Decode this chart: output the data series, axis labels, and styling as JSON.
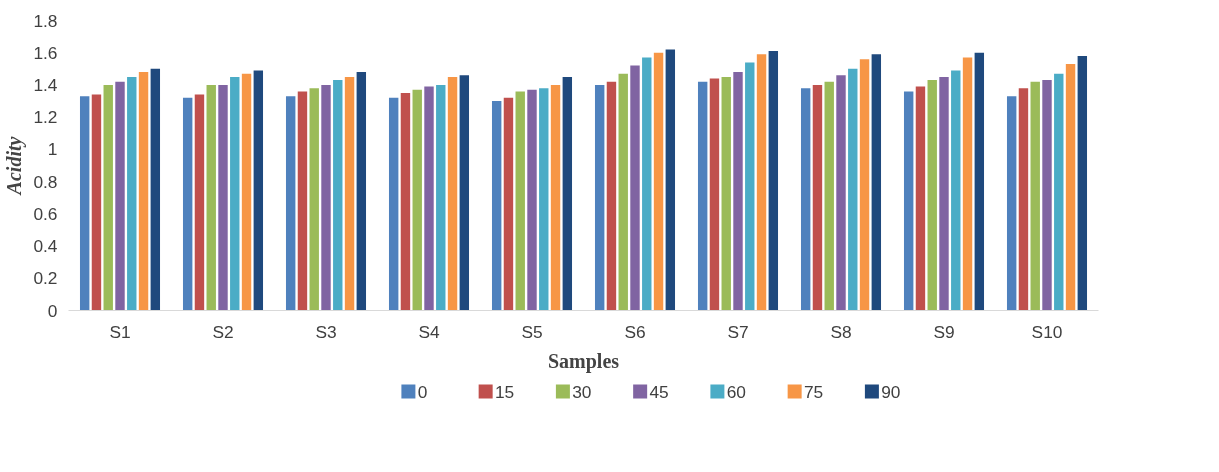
{
  "chart_data": {
    "type": "bar",
    "xlabel": "Samples",
    "ylabel": "Acidity",
    "categories": [
      "S1",
      "S2",
      "S3",
      "S4",
      "S5",
      "S6",
      "S7",
      "S8",
      "S9",
      "S10"
    ],
    "series": [
      {
        "name": "0",
        "color": "#4f81bd",
        "values": [
          1.33,
          1.32,
          1.33,
          1.32,
          1.3,
          1.4,
          1.42,
          1.38,
          1.36,
          1.33
        ]
      },
      {
        "name": "15",
        "color": "#c0504d",
        "values": [
          1.34,
          1.34,
          1.36,
          1.35,
          1.32,
          1.42,
          1.44,
          1.4,
          1.39,
          1.38
        ]
      },
      {
        "name": "30",
        "color": "#9bbb59",
        "values": [
          1.4,
          1.4,
          1.38,
          1.37,
          1.36,
          1.47,
          1.45,
          1.42,
          1.43,
          1.42
        ]
      },
      {
        "name": "45",
        "color": "#8064a2",
        "values": [
          1.42,
          1.4,
          1.4,
          1.39,
          1.37,
          1.52,
          1.48,
          1.46,
          1.45,
          1.43
        ]
      },
      {
        "name": "60",
        "color": "#4bacc6",
        "values": [
          1.45,
          1.45,
          1.43,
          1.4,
          1.38,
          1.57,
          1.54,
          1.5,
          1.49,
          1.47
        ]
      },
      {
        "name": "75",
        "color": "#f79646",
        "values": [
          1.48,
          1.47,
          1.45,
          1.45,
          1.4,
          1.6,
          1.59,
          1.56,
          1.57,
          1.53
        ]
      },
      {
        "name": "90",
        "color": "#1f497d",
        "values": [
          1.5,
          1.49,
          1.48,
          1.46,
          1.45,
          1.62,
          1.61,
          1.59,
          1.6,
          1.58
        ]
      }
    ],
    "ylim": [
      0,
      1.8
    ],
    "yticks": [
      0,
      0.2,
      0.4,
      0.6,
      0.8,
      1,
      1.2,
      1.4,
      1.6,
      1.8
    ],
    "grid": false,
    "legend": "bottom"
  }
}
